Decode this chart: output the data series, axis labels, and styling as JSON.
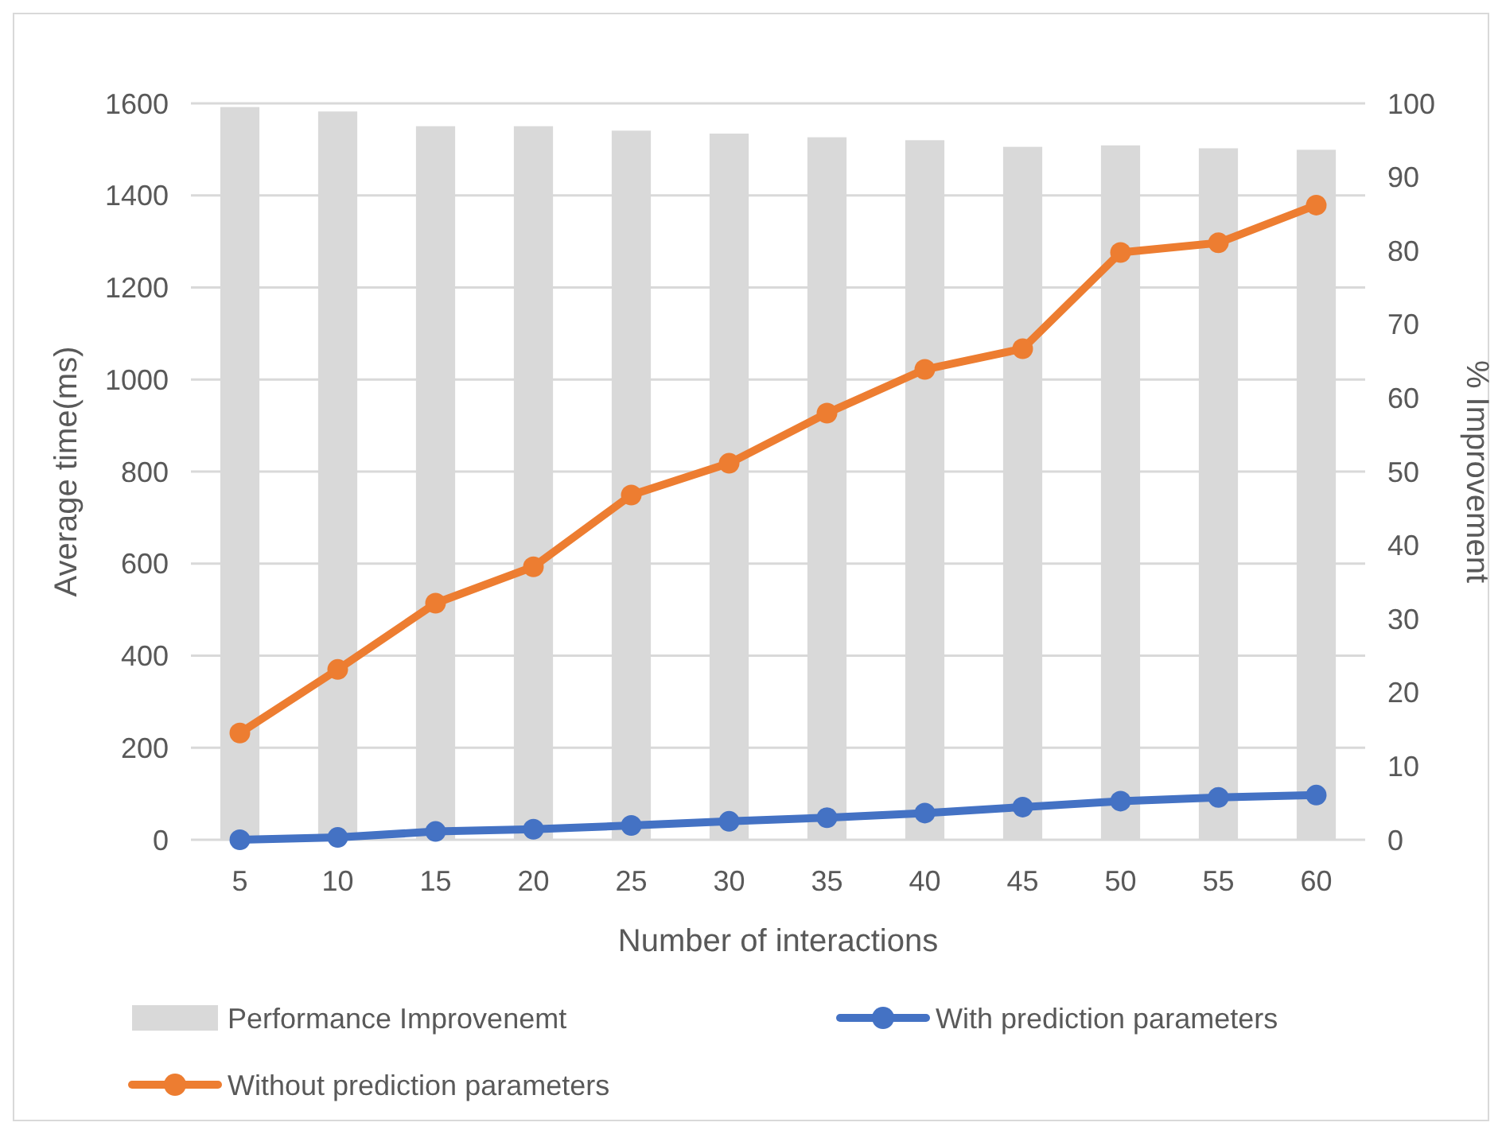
{
  "chart_data": {
    "type": "bar",
    "xlabel": "Number of interactions",
    "ylabel": "Average time(ms)",
    "y2label": "% Improvement",
    "categories": [
      "5",
      "10",
      "15",
      "20",
      "25",
      "30",
      "35",
      "40",
      "45",
      "50",
      "55",
      "60"
    ],
    "series": [
      {
        "name": "Performance Improvenemt",
        "axis": "y2",
        "color": "#d9d9d9",
        "values": [
          99.5,
          98.9,
          96.9,
          96.9,
          96.3,
          95.9,
          95.4,
          95.0,
          94.1,
          94.3,
          93.9,
          93.7
        ]
      },
      {
        "name": "With prediction parameters",
        "type": "line",
        "color": "#4472c4",
        "values": [
          0,
          5,
          18,
          23,
          31,
          40,
          48,
          58,
          71,
          84,
          92,
          97
        ]
      },
      {
        "name": "Without prediction parameters",
        "type": "line",
        "color": "#ed7d31",
        "values": [
          232,
          370,
          514,
          593,
          749,
          818,
          927,
          1022,
          1067,
          1276,
          1297,
          1379
        ]
      }
    ],
    "ylim": [
      0,
      1600
    ],
    "yticks": [
      0,
      200,
      400,
      600,
      800,
      1000,
      1200,
      1400,
      1600
    ],
    "y2lim": [
      0,
      100
    ],
    "y2ticks": [
      0,
      10,
      20,
      30,
      40,
      50,
      60,
      70,
      80,
      90,
      100
    ],
    "grid": "y",
    "legend": "bottom",
    "marker": "circle"
  }
}
